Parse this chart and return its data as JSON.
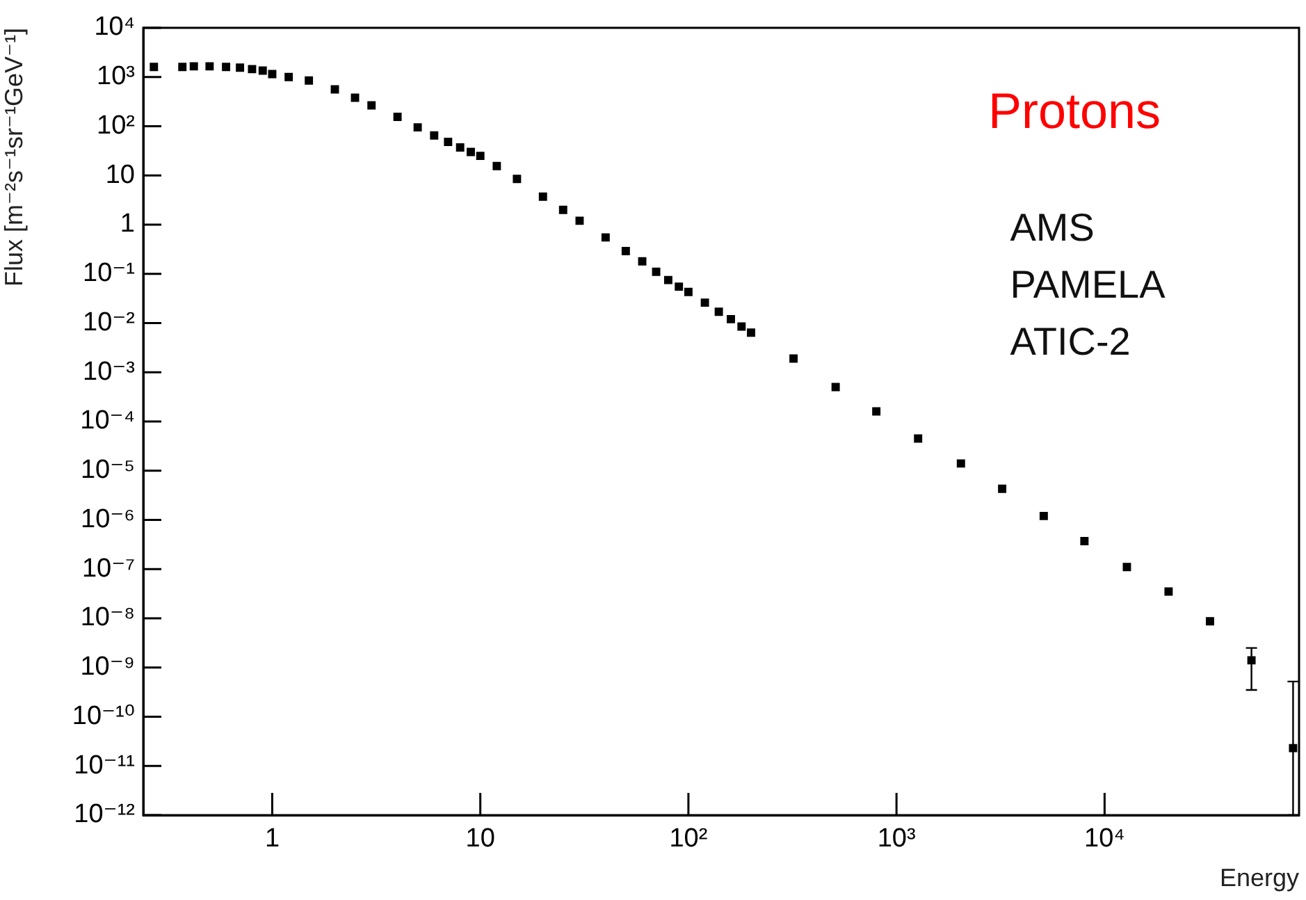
{
  "chart_data": {
    "type": "scatter",
    "title": "Protons",
    "xlabel": "Energy",
    "ylabel": "Flux [m⁻²s⁻¹sr⁻¹GeV⁻¹]",
    "annotations": [
      "AMS",
      "PAMELA",
      "ATIC-2"
    ],
    "log": "xy",
    "grid": false,
    "legend": false,
    "marker": "square",
    "xlim": [
      0.24,
      86000
    ],
    "ylim": [
      1e-12,
      10000
    ],
    "xticks": [
      1,
      10,
      {
        "value": 100,
        "label": "10²"
      },
      {
        "value": 1000,
        "label": "10³"
      },
      {
        "value": 10000,
        "label": "10⁴"
      }
    ],
    "yticks": [
      {
        "value": 1e-12,
        "label": "10⁻¹²"
      },
      {
        "value": 1e-11,
        "label": "10⁻¹¹"
      },
      {
        "value": 1e-10,
        "label": "10⁻¹⁰"
      },
      {
        "value": 1e-09,
        "label": "10⁻⁹"
      },
      {
        "value": 1e-08,
        "label": "10⁻⁸"
      },
      {
        "value": 1e-07,
        "label": "10⁻⁷"
      },
      {
        "value": 1e-06,
        "label": "10⁻⁶"
      },
      {
        "value": 1e-05,
        "label": "10⁻⁵"
      },
      {
        "value": 0.0001,
        "label": "10⁻⁴"
      },
      {
        "value": 0.001,
        "label": "10⁻³"
      },
      {
        "value": 0.01,
        "label": "10⁻²"
      },
      {
        "value": 0.1,
        "label": "10⁻¹"
      },
      1,
      10,
      {
        "value": 100,
        "label": "10²"
      },
      {
        "value": 1000,
        "label": "10³"
      },
      {
        "value": 10000,
        "label": "10⁴"
      }
    ],
    "series": [
      {
        "color": "#000000",
        "x": [
          0.27,
          0.37,
          0.42,
          0.5,
          0.6,
          0.7,
          0.8,
          0.9,
          1,
          1.2,
          1.5,
          2,
          2.5,
          3,
          4,
          5,
          6,
          7,
          8,
          9,
          10,
          12,
          15,
          20,
          25,
          30,
          40,
          50,
          60,
          70,
          80,
          90,
          100,
          120,
          140,
          160,
          180,
          200,
          320,
          510,
          800,
          1270,
          2040,
          3220,
          5100,
          8000,
          12800,
          20300,
          32100,
          50800,
          80500
        ],
        "values": [
          1600,
          1600,
          1650,
          1650,
          1600,
          1550,
          1450,
          1350,
          1150,
          1000,
          850,
          560,
          380,
          265,
          155,
          95,
          65,
          48,
          37,
          30,
          25,
          15.5,
          8.5,
          3.7,
          2,
          1.2,
          0.55,
          0.29,
          0.18,
          0.11,
          0.075,
          0.055,
          0.043,
          0.026,
          0.017,
          0.012,
          0.0085,
          0.0064,
          0.0019,
          0.0005,
          0.00016,
          4.5e-05,
          1.4e-05,
          4.3e-06,
          1.2e-06,
          3.7e-07,
          1.1e-07,
          3.5e-08,
          8.7e-09,
          1.4e-09,
          2.3e-11
        ],
        "errors": [
          null,
          null,
          null,
          null,
          null,
          null,
          null,
          null,
          null,
          null,
          null,
          null,
          null,
          null,
          null,
          null,
          null,
          null,
          null,
          null,
          null,
          null,
          null,
          null,
          null,
          null,
          null,
          null,
          null,
          null,
          null,
          null,
          null,
          null,
          null,
          null,
          null,
          null,
          null,
          null,
          null,
          null,
          null,
          null,
          null,
          null,
          null,
          null,
          null,
          [
            3.5e-10,
            2.5e-09
          ],
          [
            1e-12,
            5.2e-10
          ]
        ]
      }
    ]
  }
}
